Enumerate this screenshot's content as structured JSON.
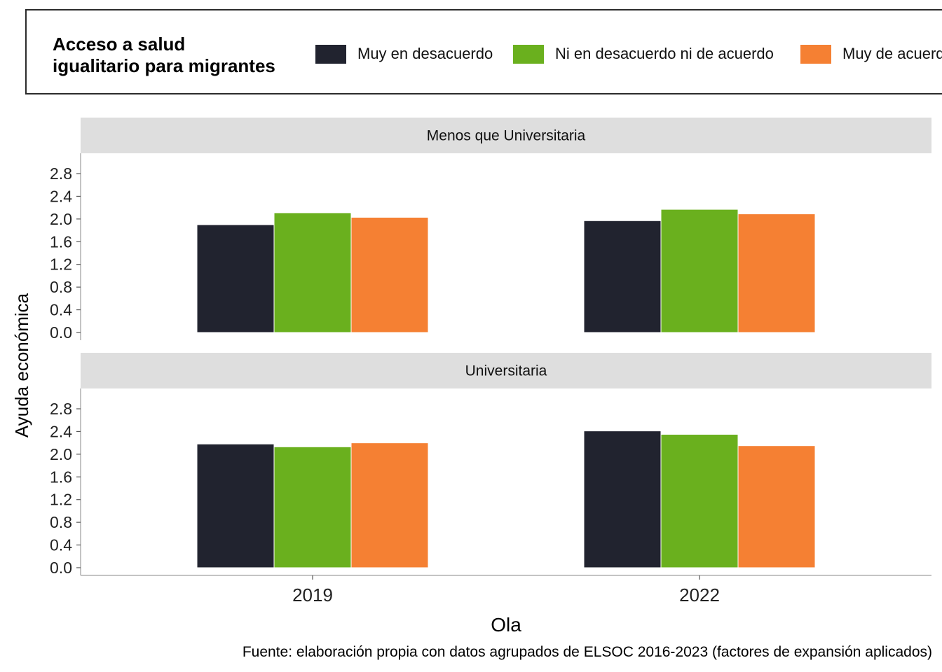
{
  "legend": {
    "title_line1": "Acceso a salud",
    "title_line2": "igualitario para migrantes",
    "items": [
      {
        "label": "Muy en desacuerdo",
        "color": "#21232f"
      },
      {
        "label": "Ni en desacuerdo ni de acuerdo",
        "color": "#6ab01e"
      },
      {
        "label": "Muy de acuerdo",
        "color": "#f58033"
      }
    ]
  },
  "caption": "Fuente: elaboración propia con datos agrupados de ELSOC 2016-2023 (factores de expansión aplicados)",
  "chart_data": {
    "type": "bar",
    "xlabel": "Ola",
    "ylabel": "Ayuda económica",
    "ylim": [
      0,
      3.0
    ],
    "yticks": [
      "0.0",
      "0.4",
      "0.8",
      "1.2",
      "1.6",
      "2.0",
      "2.4",
      "2.8"
    ],
    "categories": [
      "2019",
      "2022"
    ],
    "grid": false,
    "legend_position": "top",
    "facets": [
      {
        "title": "Menos que Universitaria",
        "series": [
          {
            "name": "Muy en desacuerdo",
            "values": [
              1.9,
              1.97
            ]
          },
          {
            "name": "Ni en desacuerdo ni de acuerdo",
            "values": [
              2.11,
              2.17
            ]
          },
          {
            "name": "Muy de acuerdo",
            "values": [
              2.03,
              2.09
            ]
          }
        ]
      },
      {
        "title": "Universitaria",
        "series": [
          {
            "name": "Muy en desacuerdo",
            "values": [
              2.18,
              2.41
            ]
          },
          {
            "name": "Ni en desacuerdo ni de acuerdo",
            "values": [
              2.13,
              2.35
            ]
          },
          {
            "name": "Muy de acuerdo",
            "values": [
              2.2,
              2.15
            ]
          }
        ]
      }
    ]
  }
}
